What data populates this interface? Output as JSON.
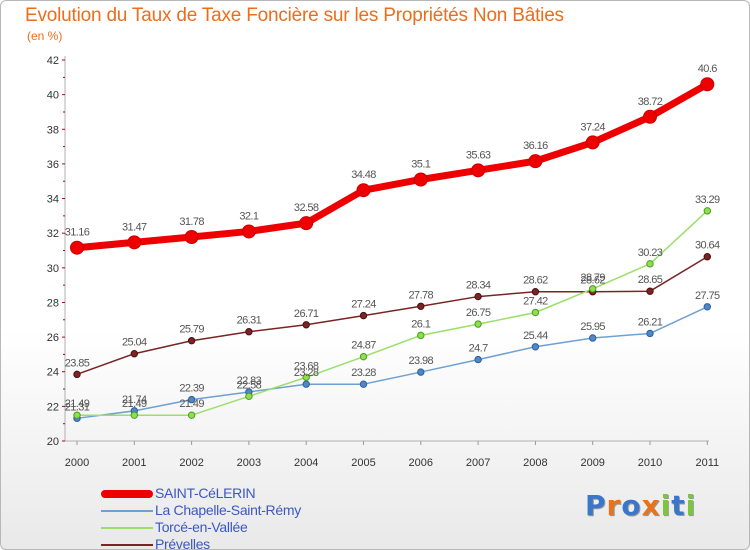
{
  "chart_data": {
    "type": "line",
    "title": "Evolution du Taux de Taxe Foncière sur les Propriétés Non Bâties",
    "ylabel": "(en %)",
    "xlabel": "",
    "categories": [
      "2000",
      "2001",
      "2002",
      "2003",
      "2004",
      "2005",
      "2006",
      "2007",
      "2008",
      "2009",
      "2010",
      "2011"
    ],
    "ylim": [
      20,
      42
    ],
    "yticks": [
      20,
      22,
      24,
      26,
      28,
      30,
      32,
      34,
      36,
      38,
      40,
      42
    ],
    "grid": false,
    "legend": "bottom-left",
    "series": [
      {
        "name": "SAINT-CéLERIN",
        "color": "#ee0000",
        "values": [
          31.16,
          31.47,
          31.78,
          32.1,
          32.58,
          34.48,
          35.1,
          35.63,
          36.16,
          37.24,
          38.72,
          40.6
        ],
        "labels": [
          "31.16",
          "31.47",
          "31.78",
          "32.1",
          "32.58",
          "34.48",
          "35.1",
          "35.63",
          "36.16",
          "37.24",
          "38.72",
          "40.6"
        ]
      },
      {
        "name": "La Chapelle-Saint-Rémy",
        "color": "#6fa0d2",
        "values": [
          21.31,
          21.74,
          22.39,
          22.83,
          23.28,
          23.28,
          23.98,
          24.7,
          25.44,
          25.95,
          26.21,
          27.75
        ],
        "labels": [
          "21.31",
          "21.74",
          "22.39",
          "22.83",
          "23.28",
          "23.28",
          "23.98",
          "24.7",
          "25.44",
          "25.95",
          "26.21",
          "27.75"
        ]
      },
      {
        "name": "Torcé-en-Vallée",
        "color": "#9adf6a",
        "values": [
          21.49,
          21.49,
          21.49,
          22.58,
          23.68,
          24.87,
          26.1,
          26.75,
          27.42,
          28.79,
          30.23,
          33.29
        ],
        "labels": [
          "21.49",
          "21.49",
          "21.49",
          "22.58",
          "23.68",
          "24.87",
          "26.1",
          "26.75",
          "27.42",
          "28.79",
          "30.23",
          "33.29"
        ]
      },
      {
        "name": "Prévelles",
        "color": "#7a2424",
        "values": [
          23.85,
          25.04,
          25.79,
          26.31,
          26.71,
          27.24,
          27.78,
          28.34,
          28.62,
          28.62,
          28.65,
          30.64
        ],
        "labels": [
          "23.85",
          "25.04",
          "25.79",
          "26.31",
          "26.71",
          "27.24",
          "27.78",
          "28.34",
          "28.62",
          "28.62",
          "28.65",
          "30.64"
        ]
      }
    ]
  },
  "logo": {
    "text": "Proxiti",
    "colors": [
      "#3a77c8",
      "#e8731b",
      "#3a77c8",
      "#e8731b",
      "#7cc63c",
      "#3a77c8",
      "#7cc63c"
    ]
  }
}
